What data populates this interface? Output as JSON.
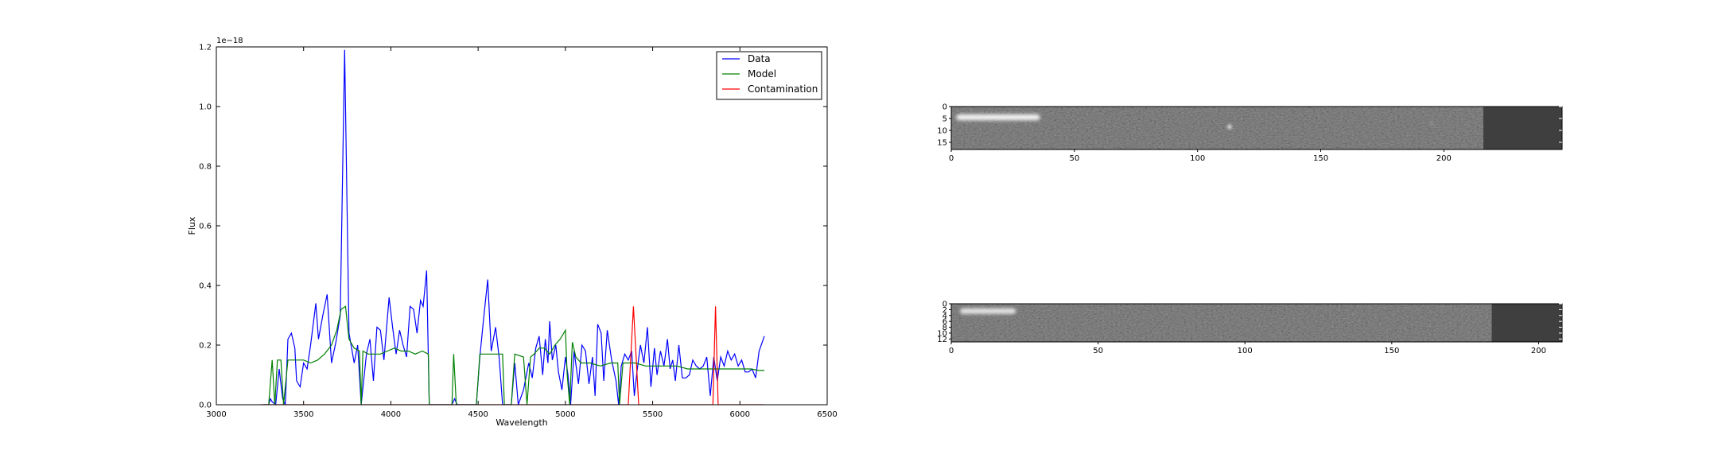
{
  "chart_data": [
    {
      "type": "line",
      "xlabel": "Wavelength",
      "ylabel": "Flux",
      "offset_text": "1e−18",
      "xlim": [
        3000,
        6500
      ],
      "ylim": [
        0.0,
        1.2
      ],
      "x_ticks": [
        3000,
        3500,
        4000,
        4500,
        5000,
        5500,
        6000,
        6500
      ],
      "y_ticks": [
        0.0,
        0.2,
        0.4,
        0.6,
        0.8,
        1.0,
        1.2
      ],
      "x_tick_labels": [
        "3000",
        "3500",
        "4000",
        "4500",
        "5000",
        "5500",
        "6000",
        "6500"
      ],
      "y_tick_labels": [
        "0.0",
        "0.2",
        "0.4",
        "0.6",
        "0.8",
        "1.0",
        "1.2"
      ],
      "grid": false,
      "legend_position": "top-right",
      "series": [
        {
          "name": "Data",
          "color": "#0000ff",
          "points": [
            [
              3270,
              0.0
            ],
            [
              3300,
              0.0
            ],
            [
              3310,
              0.02
            ],
            [
              3320,
              0.01
            ],
            [
              3340,
              0.0
            ],
            [
              3360,
              0.12
            ],
            [
              3380,
              0.02
            ],
            [
              3395,
              0.0
            ],
            [
              3410,
              0.22
            ],
            [
              3430,
              0.24
            ],
            [
              3450,
              0.19
            ],
            [
              3460,
              0.08
            ],
            [
              3480,
              0.06
            ],
            [
              3500,
              0.14
            ],
            [
              3520,
              0.12
            ],
            [
              3540,
              0.2
            ],
            [
              3570,
              0.34
            ],
            [
              3585,
              0.22
            ],
            [
              3610,
              0.3
            ],
            [
              3635,
              0.37
            ],
            [
              3660,
              0.14
            ],
            [
              3685,
              0.21
            ],
            [
              3710,
              0.3
            ],
            [
              3735,
              1.19
            ],
            [
              3760,
              0.24
            ],
            [
              3790,
              0.14
            ],
            [
              3810,
              0.2
            ],
            [
              3830,
              0.0
            ],
            [
              3860,
              0.17
            ],
            [
              3880,
              0.22
            ],
            [
              3900,
              0.08
            ],
            [
              3920,
              0.26
            ],
            [
              3940,
              0.25
            ],
            [
              3960,
              0.15
            ],
            [
              3990,
              0.36
            ],
            [
              4010,
              0.26
            ],
            [
              4030,
              0.17
            ],
            [
              4050,
              0.25
            ],
            [
              4070,
              0.2
            ],
            [
              4090,
              0.16
            ],
            [
              4110,
              0.33
            ],
            [
              4130,
              0.32
            ],
            [
              4150,
              0.24
            ],
            [
              4170,
              0.35
            ],
            [
              4185,
              0.33
            ],
            [
              4205,
              0.45
            ],
            [
              4220,
              0.0
            ],
            [
              4350,
              0.0
            ],
            [
              4365,
              0.02
            ],
            [
              4380,
              0.0
            ],
            [
              4490,
              0.0
            ],
            [
              4510,
              0.16
            ],
            [
              4530,
              0.28
            ],
            [
              4555,
              0.42
            ],
            [
              4575,
              0.18
            ],
            [
              4600,
              0.26
            ],
            [
              4620,
              0.16
            ],
            [
              4640,
              0.0
            ],
            [
              4660,
              0.0
            ],
            [
              4690,
              0.0
            ],
            [
              4710,
              0.14
            ],
            [
              4730,
              0.0
            ],
            [
              4760,
              0.05
            ],
            [
              4790,
              0.14
            ],
            [
              4810,
              0.09
            ],
            [
              4830,
              0.19
            ],
            [
              4850,
              0.23
            ],
            [
              4870,
              0.1
            ],
            [
              4885,
              0.22
            ],
            [
              4900,
              0.14
            ],
            [
              4910,
              0.28
            ],
            [
              4925,
              0.15
            ],
            [
              4945,
              0.2
            ],
            [
              4960,
              0.11
            ],
            [
              4980,
              0.05
            ],
            [
              5000,
              0.16
            ],
            [
              5015,
              0.1
            ],
            [
              5030,
              0.0
            ],
            [
              5050,
              0.18
            ],
            [
              5075,
              0.07
            ],
            [
              5095,
              0.2
            ],
            [
              5115,
              0.18
            ],
            [
              5135,
              0.07
            ],
            [
              5155,
              0.16
            ],
            [
              5170,
              0.03
            ],
            [
              5185,
              0.27
            ],
            [
              5205,
              0.24
            ],
            [
              5220,
              0.08
            ],
            [
              5240,
              0.25
            ],
            [
              5265,
              0.15
            ],
            [
              5290,
              0.08
            ],
            [
              5305,
              0.0
            ],
            [
              5320,
              0.13
            ],
            [
              5340,
              0.17
            ],
            [
              5360,
              0.15
            ],
            [
              5380,
              0.18
            ],
            [
              5395,
              0.03
            ],
            [
              5410,
              0.11
            ],
            [
              5430,
              0.2
            ],
            [
              5450,
              0.14
            ],
            [
              5470,
              0.26
            ],
            [
              5490,
              0.06
            ],
            [
              5510,
              0.19
            ],
            [
              5525,
              0.1
            ],
            [
              5545,
              0.18
            ],
            [
              5565,
              0.13
            ],
            [
              5585,
              0.22
            ],
            [
              5600,
              0.12
            ],
            [
              5615,
              0.15
            ],
            [
              5630,
              0.08
            ],
            [
              5650,
              0.2
            ],
            [
              5670,
              0.09
            ],
            [
              5690,
              0.09
            ],
            [
              5710,
              0.1
            ],
            [
              5730,
              0.15
            ],
            [
              5750,
              0.13
            ],
            [
              5770,
              0.12
            ],
            [
              5790,
              0.13
            ],
            [
              5810,
              0.16
            ],
            [
              5830,
              0.03
            ],
            [
              5850,
              0.16
            ],
            [
              5870,
              0.08
            ],
            [
              5890,
              0.16
            ],
            [
              5910,
              0.13
            ],
            [
              5930,
              0.18
            ],
            [
              5950,
              0.15
            ],
            [
              5970,
              0.17
            ],
            [
              5990,
              0.13
            ],
            [
              6010,
              0.15
            ],
            [
              6030,
              0.11
            ],
            [
              6050,
              0.11
            ],
            [
              6070,
              0.12
            ],
            [
              6090,
              0.09
            ],
            [
              6110,
              0.18
            ],
            [
              6140,
              0.23
            ]
          ]
        },
        {
          "name": "Model",
          "color": "#008000",
          "points": [
            [
              3270,
              0.0
            ],
            [
              3300,
              0.0
            ],
            [
              3320,
              0.15
            ],
            [
              3335,
              0.0
            ],
            [
              3350,
              0.15
            ],
            [
              3370,
              0.15
            ],
            [
              3385,
              0.0
            ],
            [
              3410,
              0.15
            ],
            [
              3450,
              0.15
            ],
            [
              3500,
              0.15
            ],
            [
              3540,
              0.14
            ],
            [
              3580,
              0.15
            ],
            [
              3620,
              0.17
            ],
            [
              3660,
              0.2
            ],
            [
              3690,
              0.25
            ],
            [
              3715,
              0.32
            ],
            [
              3740,
              0.33
            ],
            [
              3760,
              0.22
            ],
            [
              3790,
              0.19
            ],
            [
              3820,
              0.18
            ],
            [
              3830,
              0.0
            ],
            [
              3840,
              0.18
            ],
            [
              3870,
              0.17
            ],
            [
              3900,
              0.17
            ],
            [
              3940,
              0.17
            ],
            [
              3980,
              0.18
            ],
            [
              4020,
              0.19
            ],
            [
              4060,
              0.18
            ],
            [
              4100,
              0.18
            ],
            [
              4140,
              0.17
            ],
            [
              4180,
              0.18
            ],
            [
              4215,
              0.17
            ],
            [
              4220,
              0.0
            ],
            [
              4350,
              0.0
            ],
            [
              4360,
              0.17
            ],
            [
              4375,
              0.0
            ],
            [
              4490,
              0.0
            ],
            [
              4510,
              0.17
            ],
            [
              4550,
              0.17
            ],
            [
              4600,
              0.17
            ],
            [
              4640,
              0.17
            ],
            [
              4650,
              0.0
            ],
            [
              4690,
              0.0
            ],
            [
              4710,
              0.17
            ],
            [
              4760,
              0.16
            ],
            [
              4780,
              0.0
            ],
            [
              4800,
              0.16
            ],
            [
              4820,
              0.17
            ],
            [
              4850,
              0.19
            ],
            [
              4880,
              0.19
            ],
            [
              4910,
              0.17
            ],
            [
              4940,
              0.2
            ],
            [
              4970,
              0.22
            ],
            [
              5000,
              0.25
            ],
            [
              5010,
              0.1
            ],
            [
              5025,
              0.0
            ],
            [
              5040,
              0.21
            ],
            [
              5060,
              0.16
            ],
            [
              5090,
              0.14
            ],
            [
              5140,
              0.14
            ],
            [
              5200,
              0.13
            ],
            [
              5260,
              0.14
            ],
            [
              5300,
              0.14
            ],
            [
              5310,
              0.0
            ],
            [
              5330,
              0.14
            ],
            [
              5400,
              0.14
            ],
            [
              5460,
              0.13
            ],
            [
              5520,
              0.13
            ],
            [
              5580,
              0.13
            ],
            [
              5640,
              0.13
            ],
            [
              5700,
              0.12
            ],
            [
              5760,
              0.12
            ],
            [
              5820,
              0.12
            ],
            [
              5880,
              0.12
            ],
            [
              5940,
              0.12
            ],
            [
              6000,
              0.12
            ],
            [
              6060,
              0.12
            ],
            [
              6110,
              0.115
            ],
            [
              6140,
              0.115
            ]
          ]
        },
        {
          "name": "Contamination",
          "color": "#ff0000",
          "points": [
            [
              3250,
              0.0
            ],
            [
              3600,
              0.0
            ],
            [
              4000,
              0.0
            ],
            [
              4500,
              0.0
            ],
            [
              5000,
              0.0
            ],
            [
              5360,
              0.0
            ],
            [
              5390,
              0.33
            ],
            [
              5420,
              0.0
            ],
            [
              5800,
              0.0
            ],
            [
              5845,
              0.0
            ],
            [
              5860,
              0.33
            ],
            [
              5875,
              0.0
            ],
            [
              6000,
              0.0
            ],
            [
              6140,
              0.0
            ]
          ]
        }
      ]
    },
    {
      "type": "heatmap",
      "xlim": [
        0,
        248
      ],
      "ylim": [
        18,
        0
      ],
      "x_ticks": [
        0,
        50,
        100,
        150,
        200
      ],
      "y_ticks": [
        0,
        5,
        10,
        15
      ],
      "x_tick_labels": [
        "0",
        "50",
        "100",
        "150",
        "200"
      ],
      "y_tick_labels": [
        "0",
        "5",
        "10",
        "15"
      ],
      "colormap": "gray",
      "data_extent_x": 216,
      "features": [
        {
          "kind": "trace",
          "x": [
            2,
            36
          ],
          "y": 4.5,
          "brightness": 0.95
        },
        {
          "kind": "spot",
          "x": 113,
          "y": 8.5,
          "brightness": 0.85
        },
        {
          "kind": "spot",
          "x": 195,
          "y": 7,
          "brightness": 0.55
        }
      ]
    },
    {
      "type": "heatmap",
      "xlim": [
        0,
        208
      ],
      "ylim": [
        13,
        0
      ],
      "x_ticks": [
        0,
        50,
        100,
        150,
        200
      ],
      "y_ticks": [
        0,
        2,
        4,
        6,
        8,
        10,
        12
      ],
      "x_tick_labels": [
        "0",
        "50",
        "100",
        "150",
        "200"
      ],
      "y_tick_labels": [
        "0",
        "2",
        "4",
        "6",
        "8",
        "10",
        "12"
      ],
      "colormap": "gray",
      "data_extent_x": 184,
      "features": [
        {
          "kind": "trace",
          "x": [
            3,
            22
          ],
          "y": 2.5,
          "brightness": 0.9
        }
      ]
    }
  ]
}
